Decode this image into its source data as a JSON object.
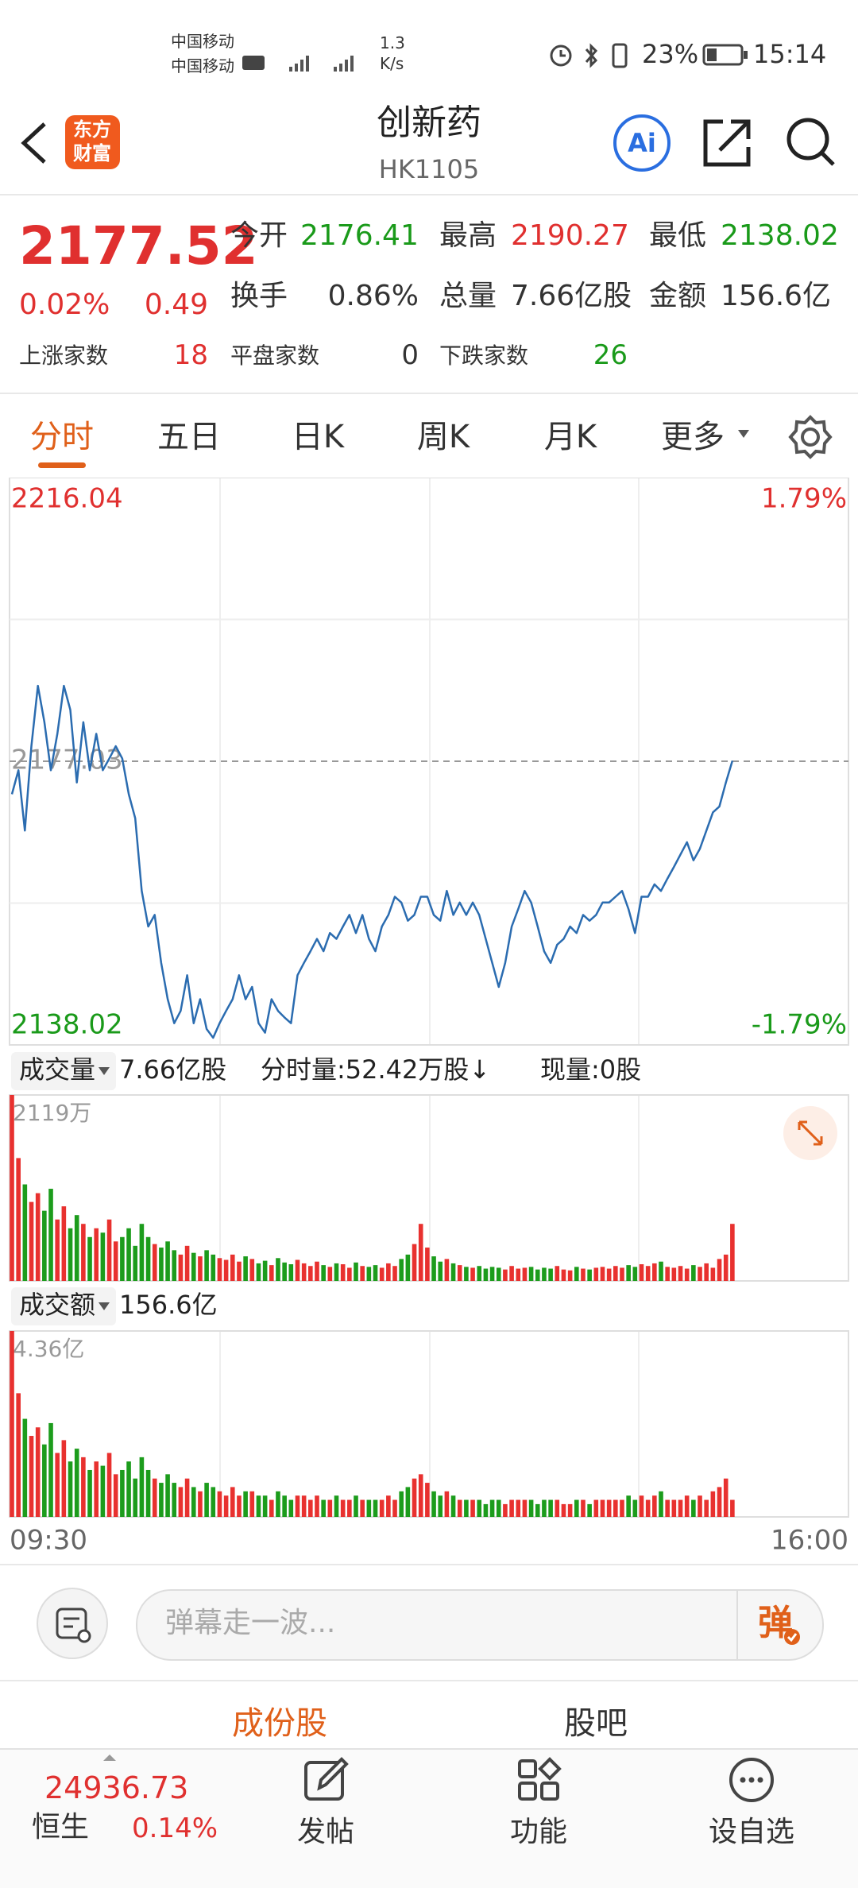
{
  "status_bar": {
    "carrier_1": "中国移动",
    "carrier_2": "中国移动",
    "speed_value": "1.3",
    "speed_unit": "K/s",
    "battery": "23%",
    "time": "15:14"
  },
  "header": {
    "logo_line_1": "东方",
    "logo_line_2": "财富",
    "title": "创新药",
    "code": "HK1105",
    "ai_button": "Ai"
  },
  "quote": {
    "price": "2177.52",
    "change_pct": "0.02%",
    "change": "0.49",
    "fields": [
      {
        "label": "今开",
        "value": "2176.41"
      },
      {
        "label": "最高",
        "value": "2190.27"
      },
      {
        "label": "最低",
        "value": "2138.02"
      },
      {
        "label": "换手",
        "value": "0.86%"
      },
      {
        "label": "总量",
        "value": "7.66亿股"
      },
      {
        "label": "金额",
        "value": "156.6亿"
      }
    ],
    "breadth": [
      {
        "label": "上涨家数",
        "value": "18"
      },
      {
        "label": "平盘家数",
        "value": "0"
      },
      {
        "label": "下跌家数",
        "value": "26"
      }
    ]
  },
  "tabs": {
    "items": [
      "分时",
      "五日",
      "日K",
      "周K",
      "月K"
    ],
    "more": "更多"
  },
  "volume_panel": {
    "selector": "成交量",
    "total": "7.66亿股",
    "period_volume": "分时量:52.42万股↓",
    "current_volume": "现量:0股"
  },
  "turnover_panel": {
    "selector": "成交额",
    "total": "156.6亿"
  },
  "chart_data": [
    {
      "type": "line",
      "color": "#2b6cb0",
      "grid": true,
      "ylim": [
        2138.02,
        2216.04
      ],
      "yticks": [
        2138.02,
        2177.03,
        2216.04
      ],
      "y2lim": [
        -1.79,
        1.79
      ],
      "y2ticks": [
        {
          "value": -1.79,
          "label": "-1.79%"
        },
        {
          "value": 1.79,
          "label": "1.79%"
        }
      ],
      "xlabels": [
        "09:30",
        "16:00"
      ],
      "values": [
        2172.5,
        2175.8,
        2167.5,
        2179.1,
        2187.4,
        2182.4,
        2175.8,
        2180.8,
        2187.4,
        2184.1,
        2174.1,
        2182.4,
        2175.8,
        2180.8,
        2175.8,
        2177.4,
        2179.1,
        2177.4,
        2172.5,
        2169.2,
        2159.2,
        2154.3,
        2155.9,
        2149.3,
        2144.3,
        2141.0,
        2142.7,
        2147.6,
        2141.0,
        2144.3,
        2140.2,
        2139.0,
        2141.0,
        2142.7,
        2144.3,
        2147.6,
        2144.3,
        2146.0,
        2141.0,
        2139.7,
        2144.3,
        2142.7,
        2141.8,
        2141.0,
        2147.6,
        2149.3,
        2150.9,
        2152.6,
        2150.9,
        2153.4,
        2152.6,
        2154.3,
        2155.9,
        2153.4,
        2155.9,
        2152.6,
        2150.9,
        2154.3,
        2155.9,
        2158.4,
        2157.6,
        2155.1,
        2155.9,
        2158.4,
        2158.4,
        2155.9,
        2155.1,
        2159.2,
        2155.9,
        2157.6,
        2155.9,
        2157.6,
        2155.9,
        2152.6,
        2149.3,
        2146.0,
        2149.3,
        2154.3,
        2156.7,
        2159.2,
        2157.6,
        2154.3,
        2150.9,
        2149.3,
        2151.8,
        2152.6,
        2154.3,
        2153.4,
        2155.9,
        2155.1,
        2155.9,
        2157.6,
        2157.6,
        2158.4,
        2159.2,
        2156.7,
        2153.4,
        2158.4,
        2158.4,
        2160.1,
        2159.2,
        2160.9,
        2162.5,
        2164.2,
        2165.9,
        2163.4,
        2165.0,
        2167.5,
        2170.0,
        2170.8,
        2174.1,
        2177.1
      ]
    },
    {
      "type": "bar",
      "up_color": "#e8312f",
      "down_color": "#1c9c1c",
      "ylim": [
        0,
        2119
      ],
      "yticks": [
        {
          "value": 2119,
          "label": "2119万"
        }
      ],
      "values": [
        2119,
        1400,
        1100,
        900,
        1000,
        800,
        1050,
        700,
        850,
        600,
        750,
        650,
        500,
        600,
        550,
        700,
        450,
        500,
        600,
        400,
        650,
        500,
        420,
        380,
        450,
        350,
        300,
        400,
        320,
        280,
        350,
        300,
        260,
        240,
        300,
        220,
        280,
        250,
        200,
        230,
        180,
        260,
        210,
        190,
        240,
        200,
        170,
        220,
        180,
        160,
        200,
        190,
        150,
        210,
        170,
        160,
        180,
        150,
        200,
        170,
        250,
        300,
        420,
        650,
        380,
        280,
        220,
        250,
        200,
        180,
        160,
        150,
        170,
        140,
        160,
        150,
        130,
        170,
        140,
        150,
        160,
        130,
        150,
        140,
        170,
        130,
        120,
        160,
        140,
        130,
        150,
        160,
        140,
        170,
        150,
        180,
        160,
        190,
        170,
        200,
        220,
        160,
        150,
        170,
        140,
        180,
        160,
        200,
        150,
        250,
        300,
        650
      ]
    },
    {
      "type": "bar",
      "up_color": "#e8312f",
      "down_color": "#1c9c1c",
      "ylim": [
        0,
        4.36
      ],
      "yticks": [
        {
          "value": 4.36,
          "label": "4.36亿"
        }
      ],
      "values": [
        4.36,
        2.9,
        2.3,
        1.9,
        2.1,
        1.7,
        2.2,
        1.5,
        1.8,
        1.3,
        1.6,
        1.4,
        1.1,
        1.3,
        1.2,
        1.5,
        1.0,
        1.1,
        1.3,
        0.9,
        1.4,
        1.1,
        0.9,
        0.8,
        1.0,
        0.8,
        0.7,
        0.9,
        0.7,
        0.6,
        0.8,
        0.7,
        0.6,
        0.5,
        0.7,
        0.5,
        0.6,
        0.6,
        0.5,
        0.5,
        0.4,
        0.6,
        0.5,
        0.4,
        0.5,
        0.5,
        0.4,
        0.5,
        0.4,
        0.4,
        0.5,
        0.4,
        0.4,
        0.5,
        0.4,
        0.4,
        0.4,
        0.4,
        0.5,
        0.4,
        0.6,
        0.7,
        0.9,
        1.0,
        0.8,
        0.6,
        0.5,
        0.6,
        0.5,
        0.4,
        0.4,
        0.4,
        0.4,
        0.3,
        0.4,
        0.4,
        0.3,
        0.4,
        0.4,
        0.4,
        0.4,
        0.3,
        0.4,
        0.4,
        0.4,
        0.3,
        0.3,
        0.4,
        0.4,
        0.3,
        0.4,
        0.4,
        0.4,
        0.4,
        0.4,
        0.5,
        0.4,
        0.5,
        0.4,
        0.5,
        0.6,
        0.4,
        0.4,
        0.4,
        0.5,
        0.4,
        0.5,
        0.4,
        0.6,
        0.7,
        0.9,
        0.4
      ]
    }
  ],
  "comment": {
    "placeholder": "弹幕走一波...",
    "button": "弹"
  },
  "sub_tabs": [
    "成份股",
    "股吧"
  ],
  "bottom_bar": {
    "index_value": "24936.73",
    "index_name": "恒生",
    "index_change": "0.14%",
    "nav": [
      "发帖",
      "功能",
      "设自选"
    ]
  }
}
